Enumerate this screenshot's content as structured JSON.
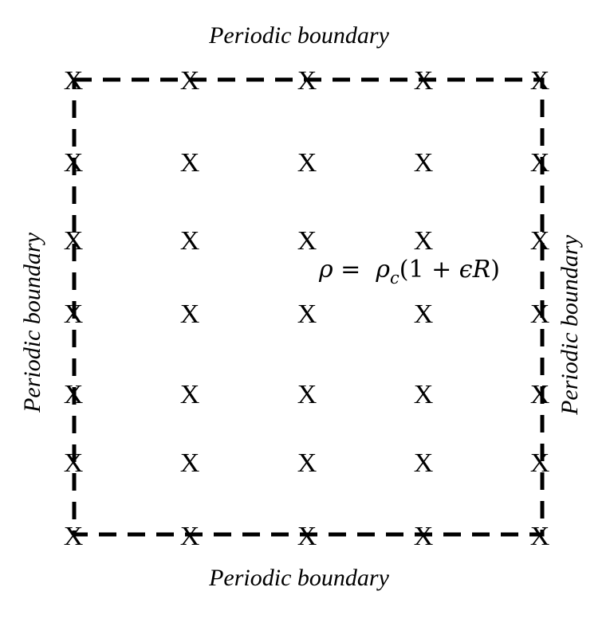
{
  "labels": {
    "top": "Periodic boundary",
    "bottom": "Periodic boundary",
    "left": "Periodic boundary",
    "right": "Periodic boundary"
  },
  "equation": {
    "rho": "ρ",
    "equals": " =  ",
    "rho_c": "ρ",
    "sub_c": "c",
    "rest_open": "(1 + ",
    "epsilon": "ϵ",
    "R": "R",
    "close": ")"
  },
  "grid": {
    "marker": "X",
    "rows": 7,
    "cols": 5
  }
}
